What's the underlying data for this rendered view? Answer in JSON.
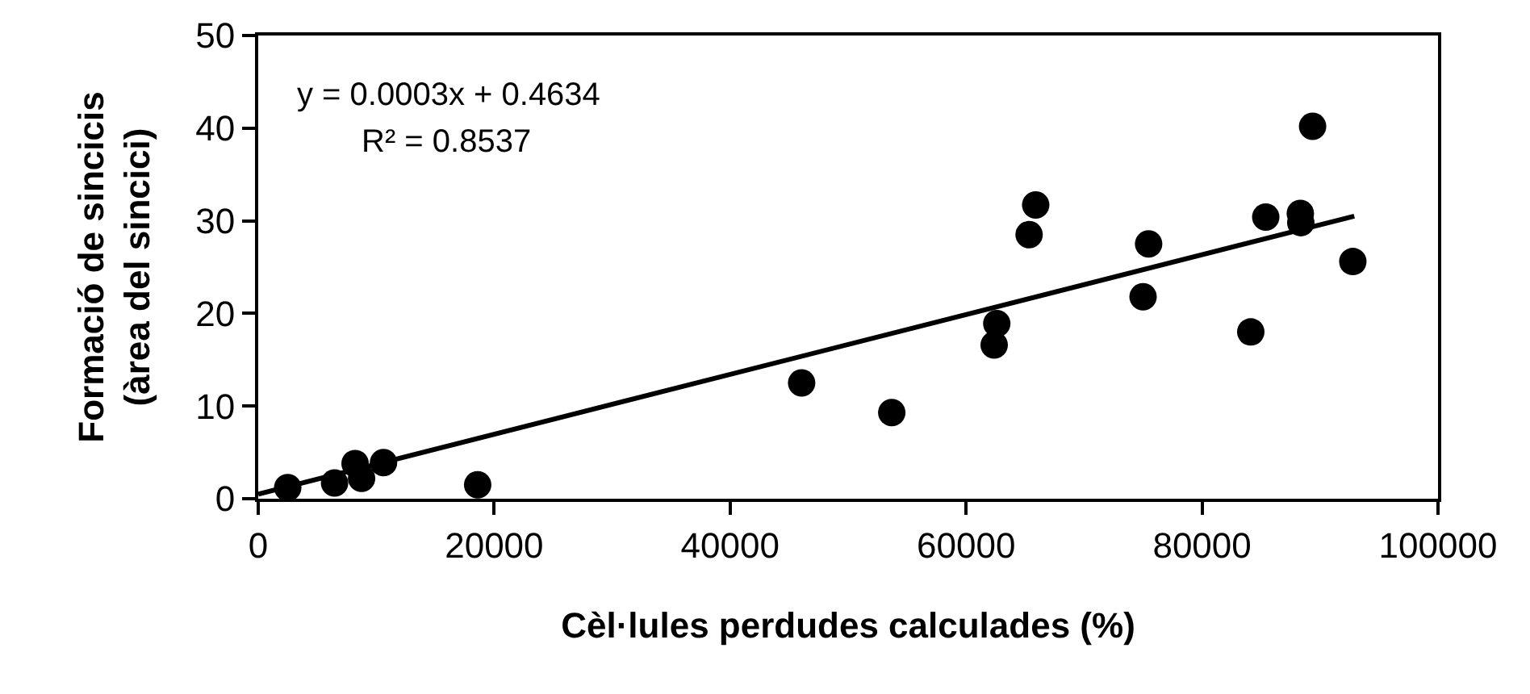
{
  "chart_data": {
    "type": "scatter",
    "xlabel": "Cèl·lules perdudes calculades (%)",
    "ylabel": "Formació de sincicis\n(àrea del sincici)",
    "annotations": [
      "y = 0.0003x + 0.4634",
      "R² = 0.8537"
    ],
    "series": [
      {
        "color": "#000000",
        "marker": "circle",
        "x": [
          2500,
          6470,
          8210,
          8760,
          10620,
          18600,
          46060,
          53700,
          62600,
          62380,
          65900,
          65340,
          75470,
          75000,
          84130,
          85400,
          88330,
          88370,
          89370,
          92780
        ],
        "values": [
          1.2,
          1.7,
          3.8,
          2.2,
          3.9,
          1.5,
          12.5,
          9.3,
          18.9,
          16.6,
          31.7,
          28.5,
          27.5,
          21.8,
          18.0,
          30.4,
          30.8,
          29.8,
          40.2,
          25.6
        ]
      },
      {
        "type": "line",
        "color": "#000000",
        "line_style": "solid",
        "marker": "none",
        "x": [
          0,
          92900
        ],
        "values": [
          0.5,
          30.5
        ]
      }
    ],
    "xlim": [
      0,
      100000
    ],
    "xticks": [
      0,
      20000,
      40000,
      60000,
      80000,
      100000
    ],
    "ylim": [
      0,
      50
    ],
    "yticks": [
      0,
      10,
      20,
      30,
      40,
      50
    ],
    "grid": false,
    "legend": false
  }
}
